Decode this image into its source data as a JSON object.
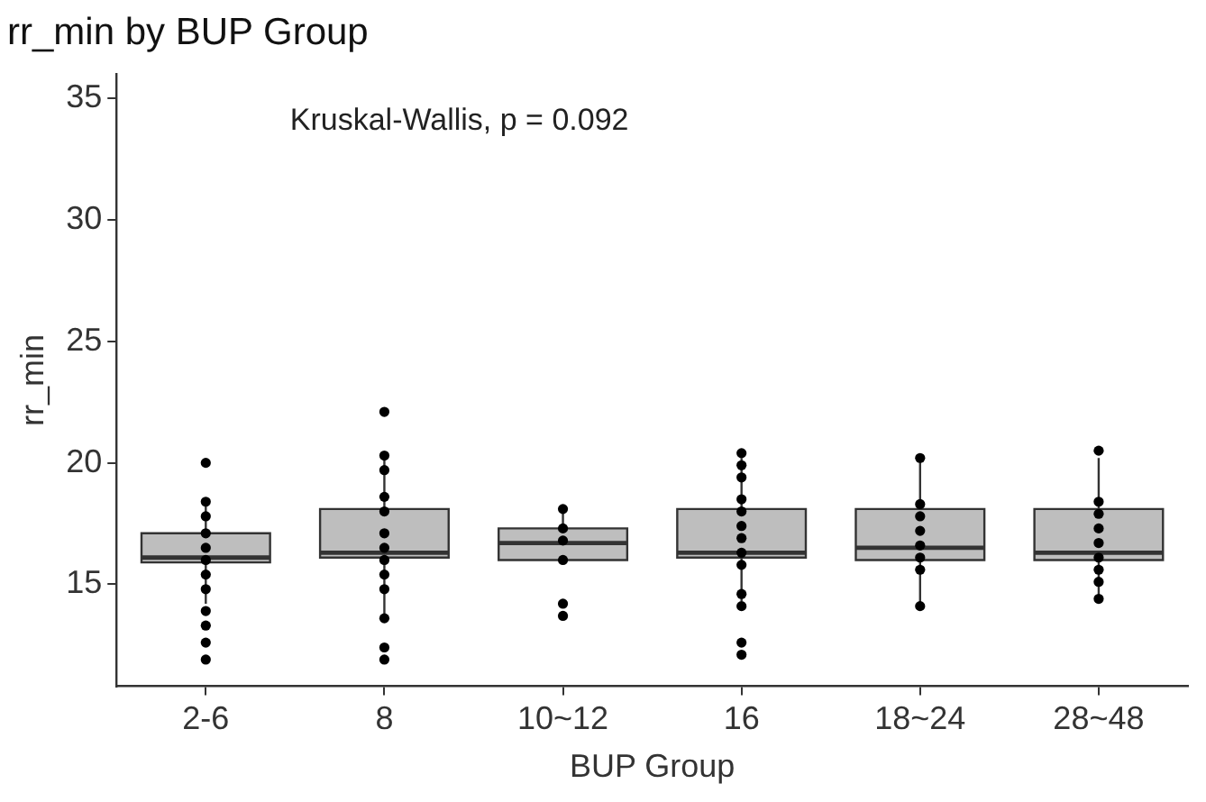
{
  "chart_data": {
    "type": "box",
    "title": "rr_min by BUP Group",
    "xlabel": "BUP Group",
    "ylabel": "rr_min",
    "annotations": [
      "Kruskal-Wallis, p = 0.092"
    ],
    "categories": [
      "2-6",
      "8",
      "10~12",
      "16",
      "18~24",
      "28~48"
    ],
    "color": "#bebebe",
    "boxes": [
      {
        "low": 14.2,
        "q1": 15.9,
        "median": 16.1,
        "q3": 17.1,
        "high": 18.4
      },
      {
        "low": 13.7,
        "q1": 16.1,
        "median": 16.3,
        "q3": 18.1,
        "high": 20.2
      },
      {
        "low": 16.0,
        "q1": 16.0,
        "median": 16.7,
        "q3": 17.3,
        "high": 18.1
      },
      {
        "low": 14.3,
        "q1": 16.1,
        "median": 16.3,
        "q3": 18.1,
        "high": 20.2
      },
      {
        "low": 14.1,
        "q1": 16.0,
        "median": 16.5,
        "q3": 18.1,
        "high": 20.2
      },
      {
        "low": 14.3,
        "q1": 16.0,
        "median": 16.3,
        "q3": 18.1,
        "high": 20.2
      }
    ],
    "series": [
      {
        "type": "scatter",
        "color": "#000000",
        "x": [
          "2-6",
          "2-6",
          "2-6",
          "2-6",
          "2-6",
          "2-6",
          "2-6",
          "2-6",
          "2-6",
          "2-6",
          "2-6",
          "2-6",
          "8",
          "8",
          "8",
          "8",
          "8",
          "8",
          "8",
          "8",
          "8",
          "8",
          "8",
          "8",
          "8",
          "10~12",
          "10~12",
          "10~12",
          "10~12",
          "10~12",
          "10~12",
          "16",
          "16",
          "16",
          "16",
          "16",
          "16",
          "16",
          "16",
          "16",
          "16",
          "16",
          "16",
          "16",
          "18~24",
          "18~24",
          "18~24",
          "18~24",
          "18~24",
          "18~24",
          "18~24",
          "18~24",
          "28~48",
          "28~48",
          "28~48",
          "28~48",
          "28~48",
          "28~48",
          "28~48",
          "28~48",
          "28~48"
        ],
        "values": [
          20,
          18.4,
          17.8,
          17.1,
          16.5,
          16,
          15.4,
          14.8,
          13.9,
          13.3,
          12.6,
          11.9,
          22.1,
          20.3,
          19.7,
          18.6,
          18,
          17.1,
          16.5,
          16,
          15.4,
          14.8,
          13.6,
          12.4,
          11.9,
          18.1,
          17.3,
          16.8,
          16,
          14.2,
          13.7,
          20.4,
          19.9,
          19.4,
          18.5,
          18,
          17.4,
          16.9,
          16.3,
          15.8,
          14.6,
          14.1,
          12.6,
          12.1,
          20.2,
          18.3,
          17.8,
          17.2,
          16.6,
          16.1,
          15.6,
          14.1,
          20.5,
          18.4,
          17.9,
          17.3,
          16.7,
          16.1,
          15.6,
          15.1,
          14.4
        ]
      }
    ],
    "ylim": [
      10.8,
      36
    ],
    "yticks": [
      15,
      20,
      25,
      30,
      35
    ],
    "grid": false,
    "legend": false,
    "marker": "circle"
  }
}
